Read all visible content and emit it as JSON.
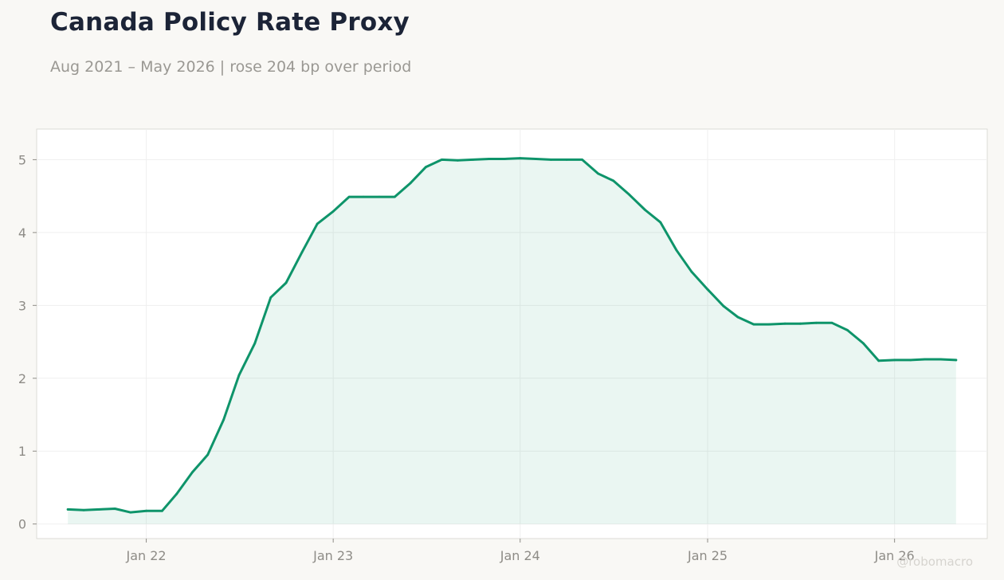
{
  "title": "Canada Policy Rate Proxy",
  "subtitle": "Aug 2021 – May 2026 | rose 204 bp over period",
  "watermark": "@robomacro",
  "colors": {
    "background": "#f9f8f5",
    "plot_background": "#ffffff",
    "line": "#0e946a",
    "fill": "#e8f4f0",
    "grid": "#efefef",
    "axis_border": "#dcdbd6"
  },
  "chart_data": {
    "type": "area",
    "title": "Canada Policy Rate Proxy",
    "subtitle": "Aug 2021 – May 2026 | rose 204 bp over period",
    "xlabel": "",
    "ylabel": "",
    "grid": true,
    "legend": "none",
    "ylim": [
      -0.2,
      5.42
    ],
    "xlim": [
      "2021-06-01",
      "2026-07-01"
    ],
    "yticks": [
      0,
      1,
      2,
      3,
      4,
      5
    ],
    "yticklabels": [
      "0",
      "1",
      "2",
      "3",
      "4",
      "5"
    ],
    "xticks": [
      "2022-01-01",
      "2023-01-01",
      "2024-01-01",
      "2025-01-01",
      "2026-01-01"
    ],
    "xticklabels": [
      "Jan 22",
      "Jan 23",
      "Jan 24",
      "Jan 25",
      "Jan 26"
    ],
    "series": [
      {
        "x": [
          "2021-08-01",
          "2021-09-01",
          "2021-10-01",
          "2021-11-01",
          "2021-12-01",
          "2022-01-01",
          "2022-02-01",
          "2022-03-01",
          "2022-04-01",
          "2022-05-01",
          "2022-06-01",
          "2022-07-01",
          "2022-08-01",
          "2022-09-01",
          "2022-10-01",
          "2022-11-01",
          "2022-12-01",
          "2023-01-01",
          "2023-02-01",
          "2023-03-01",
          "2023-04-01",
          "2023-05-01",
          "2023-06-01",
          "2023-07-01",
          "2023-08-01",
          "2023-09-01",
          "2023-10-01",
          "2023-11-01",
          "2023-12-01",
          "2024-01-01",
          "2024-02-01",
          "2024-03-01",
          "2024-04-01",
          "2024-05-01",
          "2024-06-01",
          "2024-07-01",
          "2024-08-01",
          "2024-09-01",
          "2024-10-01",
          "2024-11-01",
          "2024-12-01",
          "2025-01-01",
          "2025-02-01",
          "2025-03-01",
          "2025-04-01",
          "2025-05-01",
          "2025-06-01",
          "2025-07-01",
          "2025-08-01",
          "2025-09-01",
          "2025-10-01",
          "2025-11-01",
          "2025-12-01",
          "2026-01-01",
          "2026-02-01",
          "2026-03-01",
          "2026-04-01",
          "2026-05-01"
        ],
        "values": [
          0.2,
          0.19,
          0.2,
          0.21,
          0.16,
          0.18,
          0.18,
          0.41,
          0.71,
          0.95,
          1.43,
          2.04,
          2.48,
          3.11,
          3.31,
          3.73,
          4.12,
          4.29,
          4.49,
          4.49,
          4.49,
          4.49,
          4.68,
          4.9,
          5.0,
          4.99,
          5.0,
          5.01,
          5.01,
          5.02,
          5.01,
          5.0,
          5.0,
          5.0,
          4.81,
          4.71,
          4.52,
          4.31,
          4.14,
          3.76,
          3.46,
          3.22,
          2.99,
          2.84,
          2.74,
          2.74,
          2.75,
          2.75,
          2.76,
          2.76,
          2.66,
          2.48,
          2.24,
          2.25,
          2.25,
          2.26,
          2.26,
          2.25
        ]
      }
    ]
  }
}
